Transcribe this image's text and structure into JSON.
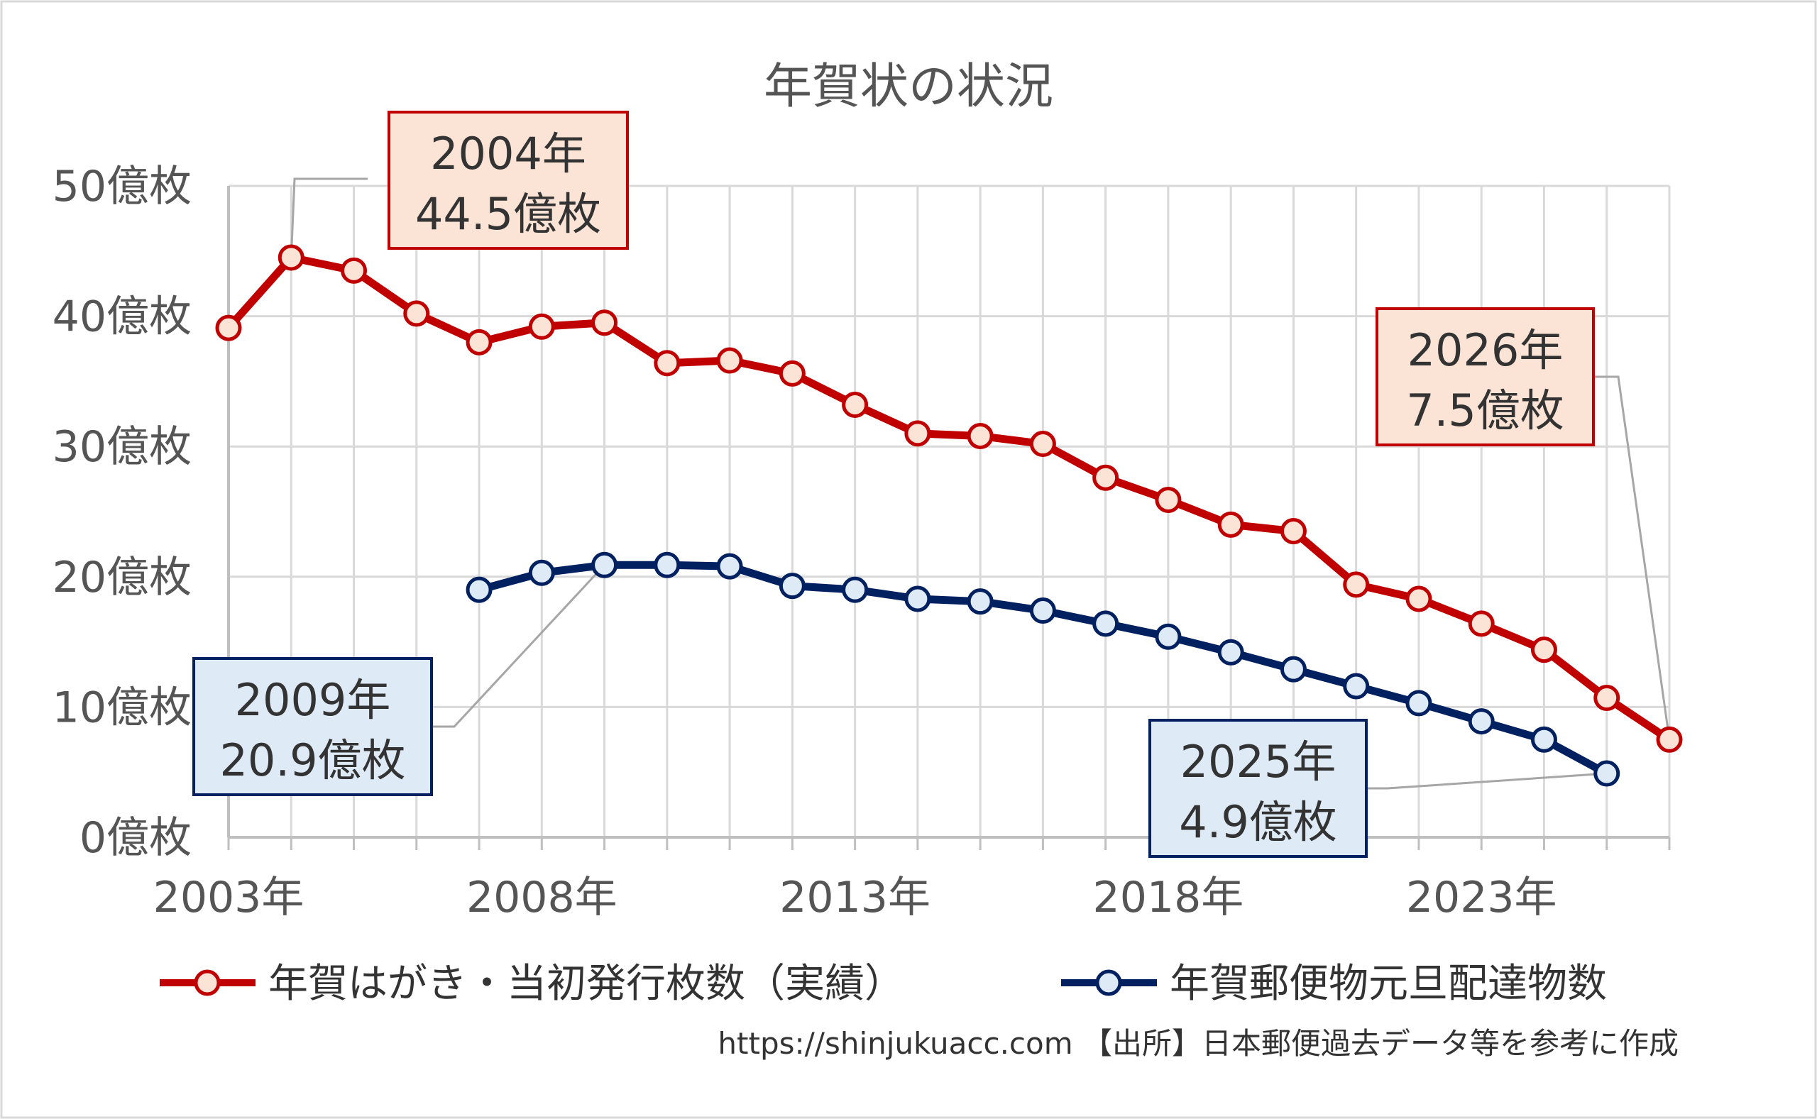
{
  "chart_data": {
    "type": "line",
    "title": "年賀状の状況",
    "x": [
      2003,
      2004,
      2005,
      2006,
      2007,
      2008,
      2009,
      2010,
      2011,
      2012,
      2013,
      2014,
      2015,
      2016,
      2017,
      2018,
      2019,
      2020,
      2021,
      2022,
      2023,
      2024,
      2025,
      2026
    ],
    "xlim": [
      2003,
      2026
    ],
    "ylim": [
      0,
      50
    ],
    "y_ticks": [
      0,
      10,
      20,
      30,
      40,
      50
    ],
    "y_tick_labels": [
      "0億枚",
      "10億枚",
      "20億枚",
      "30億枚",
      "40億枚",
      "50億枚"
    ],
    "x_ticks": [
      2003,
      2008,
      2013,
      2018,
      2023
    ],
    "x_tick_labels": [
      "2003年",
      "2008年",
      "2013年",
      "2018年",
      "2023年"
    ],
    "grid": true,
    "legend_position": "bottom",
    "series": [
      {
        "name": "年賀はがき・当初発行枚数（実績）",
        "color": "#c00000",
        "marker_fill": "#fbe3d6",
        "values": [
          39.1,
          44.5,
          43.5,
          40.2,
          38.0,
          39.2,
          39.5,
          36.4,
          36.6,
          35.6,
          33.2,
          31.0,
          30.8,
          30.2,
          27.6,
          25.9,
          24.0,
          23.5,
          19.4,
          18.3,
          16.4,
          14.4,
          10.7,
          7.5
        ]
      },
      {
        "name": "年賀郵便物元旦配達物数",
        "color": "#002060",
        "marker_fill": "#deebf7",
        "values": [
          null,
          null,
          null,
          null,
          19.0,
          20.3,
          20.9,
          20.9,
          20.8,
          19.3,
          19.0,
          18.3,
          18.1,
          17.4,
          16.4,
          15.4,
          14.2,
          12.9,
          11.6,
          10.3,
          8.9,
          7.5,
          4.9,
          null
        ]
      }
    ],
    "annotations": [
      {
        "series": 0,
        "x": 2004,
        "line1": "2004年",
        "line2": "44.5億枚",
        "style": "red"
      },
      {
        "series": 0,
        "x": 2026,
        "line1": "2026年",
        "line2": "7.5億枚",
        "style": "red"
      },
      {
        "series": 1,
        "x": 2009,
        "line1": "2009年",
        "line2": "20.9億枚",
        "style": "blue"
      },
      {
        "series": 1,
        "x": 2025,
        "line1": "2025年",
        "line2": "4.9億枚",
        "style": "blue"
      }
    ],
    "source": "https://shinjukuacc.com 【出所】日本郵便過去データ等を参考に作成"
  },
  "colors": {
    "grid": "#d9d9d9",
    "axis": "#bfbfbf",
    "callout_red_fill": "#fbe3d6",
    "callout_red_border": "#c00000",
    "callout_blue_fill": "#deebf7",
    "callout_blue_border": "#002060",
    "leader": "#a6a6a6"
  }
}
